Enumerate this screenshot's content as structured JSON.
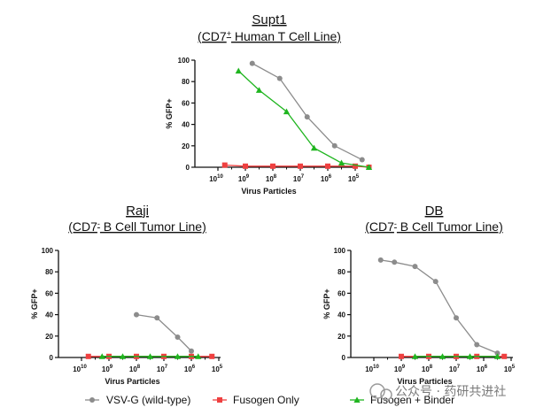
{
  "chart_data": [
    {
      "type": "line",
      "title": "Supt1",
      "subtitle_main": "(CD7",
      "subtitle_sup": "+",
      "subtitle_rest": " Human T Cell Line)",
      "xlabel": "Virus Particles",
      "ylabel": "% GFP+",
      "ylim": [
        0,
        100
      ],
      "yticks": [
        "0",
        "20",
        "40",
        "60",
        "80",
        "100"
      ],
      "xticks": [
        {
          "base": "10",
          "exp": "10"
        },
        {
          "base": "10",
          "exp": "9"
        },
        {
          "base": "10",
          "exp": "8"
        },
        {
          "base": "10",
          "exp": "7"
        },
        {
          "base": "10",
          "exp": "6"
        },
        {
          "base": "10",
          "exp": "5"
        }
      ],
      "series": [
        {
          "name": "VSV-G (wild-type)",
          "x": [
            1.25,
            2.25,
            3.25,
            4.25,
            5.25
          ],
          "y": [
            97,
            83,
            47,
            20,
            7
          ]
        },
        {
          "name": "Fusogen Only",
          "x": [
            0.25,
            1.0,
            2.0,
            3.0,
            4.0,
            5.0,
            5.5
          ],
          "y": [
            2,
            1,
            1,
            1,
            1,
            1,
            0
          ]
        },
        {
          "name": "Fusogen + Binder",
          "x": [
            0.75,
            1.5,
            2.5,
            3.5,
            4.5,
            5.5
          ],
          "y": [
            90,
            72,
            52,
            18,
            4,
            0
          ]
        }
      ]
    },
    {
      "type": "line",
      "title": "Raji",
      "subtitle_main": "(CD7",
      "subtitle_sup": "-",
      "subtitle_rest": " B Cell Tumor Line)",
      "xlabel": "Virus Particles",
      "ylabel": "% GFP+",
      "ylim": [
        0,
        100
      ],
      "yticks": [
        "0",
        "20",
        "40",
        "60",
        "80",
        "100"
      ],
      "xticks": [
        {
          "base": "10",
          "exp": "10"
        },
        {
          "base": "10",
          "exp": "9"
        },
        {
          "base": "10",
          "exp": "8"
        },
        {
          "base": "10",
          "exp": "7"
        },
        {
          "base": "10",
          "exp": "6"
        },
        {
          "base": "10",
          "exp": "5"
        }
      ],
      "series": [
        {
          "name": "VSV-G (wild-type)",
          "x": [
            2.0,
            2.75,
            3.5,
            4.0
          ],
          "y": [
            40,
            37,
            19,
            6
          ]
        },
        {
          "name": "Fusogen Only",
          "x": [
            0.25,
            1.0,
            2.0,
            3.0,
            4.0,
            4.75
          ],
          "y": [
            1,
            1,
            1,
            1,
            1,
            1
          ]
        },
        {
          "name": "Fusogen + Binder",
          "x": [
            0.75,
            1.5,
            2.5,
            3.5,
            4.25
          ],
          "y": [
            1,
            1,
            1,
            1,
            1
          ]
        }
      ]
    },
    {
      "type": "line",
      "title": "DB",
      "subtitle_main": "(CD7",
      "subtitle_sup": "-",
      "subtitle_rest": " B Cell Tumor Line)",
      "xlabel": "Virus Particles",
      "ylabel": "% GFP+",
      "ylim": [
        0,
        100
      ],
      "yticks": [
        "0",
        "20",
        "40",
        "60",
        "80",
        "100"
      ],
      "xticks": [
        {
          "base": "10",
          "exp": "10"
        },
        {
          "base": "10",
          "exp": "9"
        },
        {
          "base": "10",
          "exp": "8"
        },
        {
          "base": "10",
          "exp": "7"
        },
        {
          "base": "10",
          "exp": "6"
        },
        {
          "base": "10",
          "exp": "5"
        }
      ],
      "series": [
        {
          "name": "VSV-G (wild-type)",
          "x": [
            0.25,
            0.75,
            1.5,
            2.25,
            3.0,
            3.75,
            4.5
          ],
          "y": [
            91,
            89,
            85,
            71,
            37,
            12,
            4
          ]
        },
        {
          "name": "Fusogen Only",
          "x": [
            1.0,
            2.0,
            3.0,
            3.75,
            4.75
          ],
          "y": [
            1,
            1,
            1,
            1,
            1
          ]
        },
        {
          "name": "Fusogen + Binder",
          "x": [
            1.5,
            2.5,
            3.5,
            4.5
          ],
          "y": [
            1,
            1,
            1,
            1
          ]
        }
      ]
    }
  ],
  "legend": {
    "items": [
      {
        "label": "VSV-G (wild-type)",
        "marker": "circle",
        "color": "#8c8c8c"
      },
      {
        "label": "Fusogen Only",
        "marker": "square",
        "color": "#ef4040"
      },
      {
        "label": "Fusogen + Binder",
        "marker": "triangle",
        "color": "#1fb51f"
      }
    ]
  },
  "watermark": {
    "text": "公众号 · 药研共进社"
  },
  "colors": {
    "vsv": "#8c8c8c",
    "fusogen_only": "#ef4040",
    "binder": "#1fb51f",
    "axis": "#111111"
  }
}
